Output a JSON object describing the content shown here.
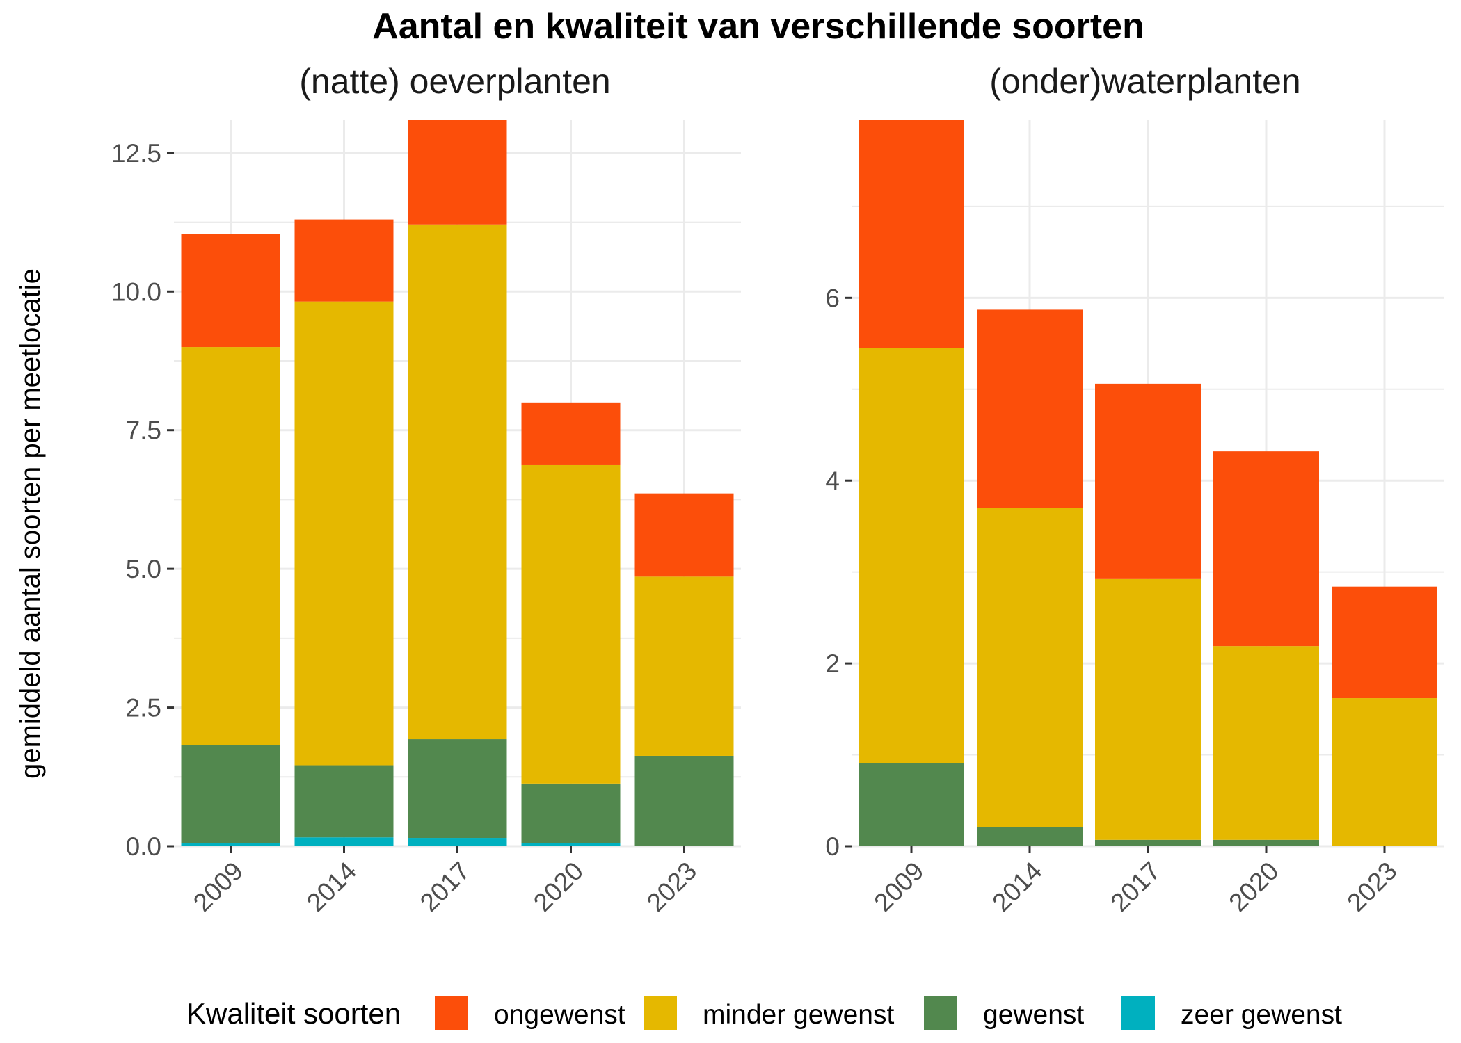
{
  "title": "Aantal en kwaliteit van verschillende soorten",
  "ylabel": "gemiddeld aantal soorten per meetlocatie",
  "legend": {
    "title": "Kwaliteit soorten",
    "placement": "bottom",
    "entries": [
      {
        "name": "ongewenst",
        "color": "#FC4E0A"
      },
      {
        "name": "minder gewenst",
        "color": "#E5B800"
      },
      {
        "name": "gewenst",
        "color": "#52884E"
      },
      {
        "name": "zeer gewenst",
        "color": "#00B0BF"
      }
    ]
  },
  "chart_data": [
    {
      "type": "bar",
      "stacked": true,
      "title": "(natte) oeverplanten",
      "categories": [
        "2009",
        "2014",
        "2017",
        "2020",
        "2023"
      ],
      "ylim": [
        0,
        13.1
      ],
      "yticks": [
        0,
        2.5,
        5,
        7.5,
        10,
        12.5
      ],
      "ytick_labels": [
        "0.0",
        "2.5",
        "5.0",
        "7.5",
        "10.0",
        "12.5"
      ],
      "grid": true,
      "series": [
        {
          "name": "zeer gewenst",
          "values": [
            0.05,
            0.16,
            0.15,
            0.06,
            0
          ]
        },
        {
          "name": "gewenst",
          "values": [
            1.77,
            1.3,
            1.78,
            1.07,
            1.63
          ]
        },
        {
          "name": "minder gewenst",
          "values": [
            7.18,
            8.36,
            9.28,
            5.74,
            3.23
          ]
        },
        {
          "name": "ongewenst",
          "values": [
            2.04,
            1.48,
            1.89,
            1.13,
            1.5
          ]
        }
      ]
    },
    {
      "type": "bar",
      "stacked": true,
      "title": "(onder)waterplanten",
      "categories": [
        "2009",
        "2014",
        "2017",
        "2020",
        "2023"
      ],
      "ylim": [
        0,
        7.95
      ],
      "yticks": [
        0,
        2,
        4,
        6
      ],
      "ytick_labels": [
        "0",
        "2",
        "4",
        "6"
      ],
      "grid": true,
      "series": [
        {
          "name": "zeer gewenst",
          "values": [
            0,
            0,
            0,
            0,
            0
          ]
        },
        {
          "name": "gewenst",
          "values": [
            0.91,
            0.21,
            0.07,
            0.07,
            0
          ]
        },
        {
          "name": "minder gewenst",
          "values": [
            4.54,
            3.49,
            2.86,
            2.12,
            1.62
          ]
        },
        {
          "name": "ongewenst",
          "values": [
            2.5,
            2.17,
            2.13,
            2.13,
            1.22
          ]
        }
      ]
    }
  ]
}
